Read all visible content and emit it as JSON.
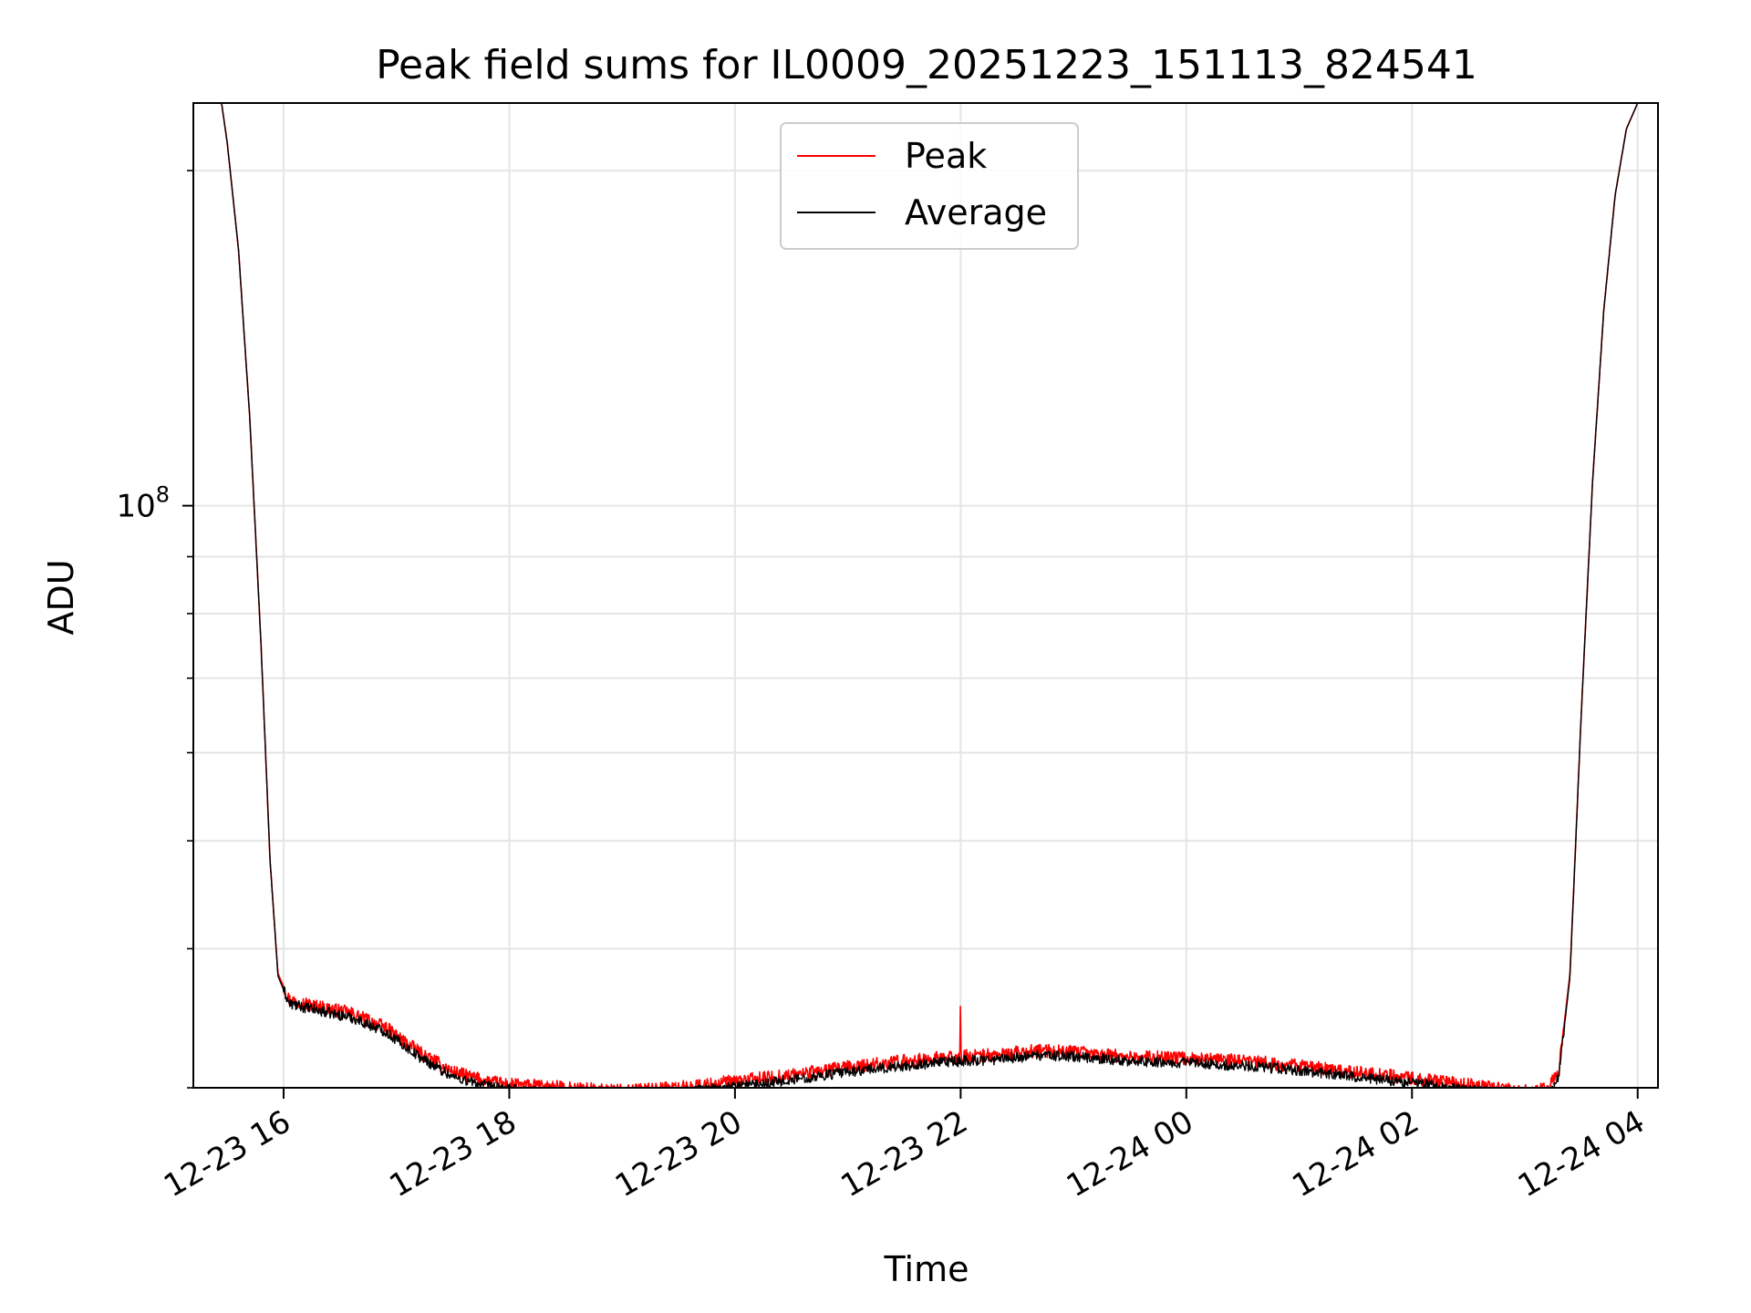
{
  "chart_data": {
    "type": "line",
    "title": "Peak field sums for IL0009_20251223_151113_824541",
    "xlabel": "Time",
    "ylabel": "ADU",
    "yscale": "log",
    "grid": true,
    "legend_position": "top-center",
    "x_unit": "hours since 12-23 00:00",
    "xlim": [
      15.2,
      28.18
    ],
    "ylim": [
      30000000,
      230000000
    ],
    "x_ticks": [
      {
        "value": 16,
        "label": "12-23 16"
      },
      {
        "value": 18,
        "label": "12-23 18"
      },
      {
        "value": 20,
        "label": "12-23 20"
      },
      {
        "value": 22,
        "label": "12-23 22"
      },
      {
        "value": 24,
        "label": "12-24 00"
      },
      {
        "value": 26,
        "label": "12-24 02"
      },
      {
        "value": 28,
        "label": "12-24 04"
      }
    ],
    "y_major_tick": {
      "value": 100000000,
      "base": "10",
      "exp": "8"
    },
    "y_minor_ticks": [
      30000000,
      40000000,
      50000000,
      60000000,
      70000000,
      80000000,
      90000000,
      200000000
    ],
    "series": [
      {
        "name": "Peak",
        "color": "#ff0000",
        "x": [
          15.2,
          15.45,
          15.5,
          15.6,
          15.7,
          15.8,
          15.88,
          15.95,
          16.05,
          16.3,
          16.6,
          16.9,
          17.2,
          17.5,
          17.8,
          18.0,
          18.5,
          19.0,
          19.5,
          20.0,
          20.5,
          21.0,
          21.5,
          22.0,
          22.3,
          22.7,
          23.0,
          23.5,
          24.0,
          24.5,
          25.0,
          25.5,
          26.0,
          26.5,
          27.0,
          27.2,
          27.3,
          27.4,
          27.5,
          27.6,
          27.7,
          27.8,
          27.9,
          28.0,
          28.18
        ],
        "y": [
          230000000,
          230000000,
          212000000,
          170000000,
          120000000,
          75000000,
          48000000,
          38000000,
          36000000,
          35500000,
          35000000,
          34000000,
          32300000,
          31000000,
          30400000,
          30200000,
          30000000,
          29800000,
          30000000,
          30400000,
          30800000,
          31300000,
          31700000,
          32000000,
          32100000,
          32400000,
          32300000,
          32000000,
          31900000,
          31700000,
          31400000,
          31000000,
          30600000,
          30200000,
          29800000,
          29900000,
          31000000,
          38000000,
          65000000,
          105000000,
          150000000,
          190000000,
          218000000,
          230000000,
          230000000
        ]
      },
      {
        "name": "Average",
        "color": "#000000",
        "x": [
          15.2,
          15.45,
          15.5,
          15.6,
          15.7,
          15.8,
          15.88,
          15.95,
          16.05,
          16.3,
          16.6,
          16.9,
          17.2,
          17.5,
          17.8,
          18.0,
          18.5,
          19.0,
          19.5,
          20.0,
          20.5,
          21.0,
          21.5,
          22.0,
          22.3,
          22.7,
          23.0,
          23.5,
          24.0,
          24.5,
          25.0,
          25.5,
          26.0,
          26.5,
          27.0,
          27.2,
          27.3,
          27.4,
          27.5,
          27.6,
          27.7,
          27.8,
          27.9,
          28.0,
          28.18
        ],
        "y": [
          230000000,
          230000000,
          212000000,
          170000000,
          120000000,
          75000000,
          48000000,
          37800000,
          35700000,
          35200000,
          34700000,
          33700000,
          32000000,
          30700000,
          30100000,
          29900000,
          29700000,
          29500000,
          29700000,
          30100000,
          30500000,
          31000000,
          31400000,
          31700000,
          31800000,
          32100000,
          32000000,
          31700000,
          31600000,
          31400000,
          31100000,
          30700000,
          30300000,
          29900000,
          29500000,
          29600000,
          30700000,
          37700000,
          65000000,
          105000000,
          150000000,
          190000000,
          218000000,
          230000000,
          230000000
        ]
      }
    ],
    "annotations": [
      {
        "series": "Peak",
        "x": 22.0,
        "y": 35500000,
        "note": "single spike"
      }
    ]
  }
}
